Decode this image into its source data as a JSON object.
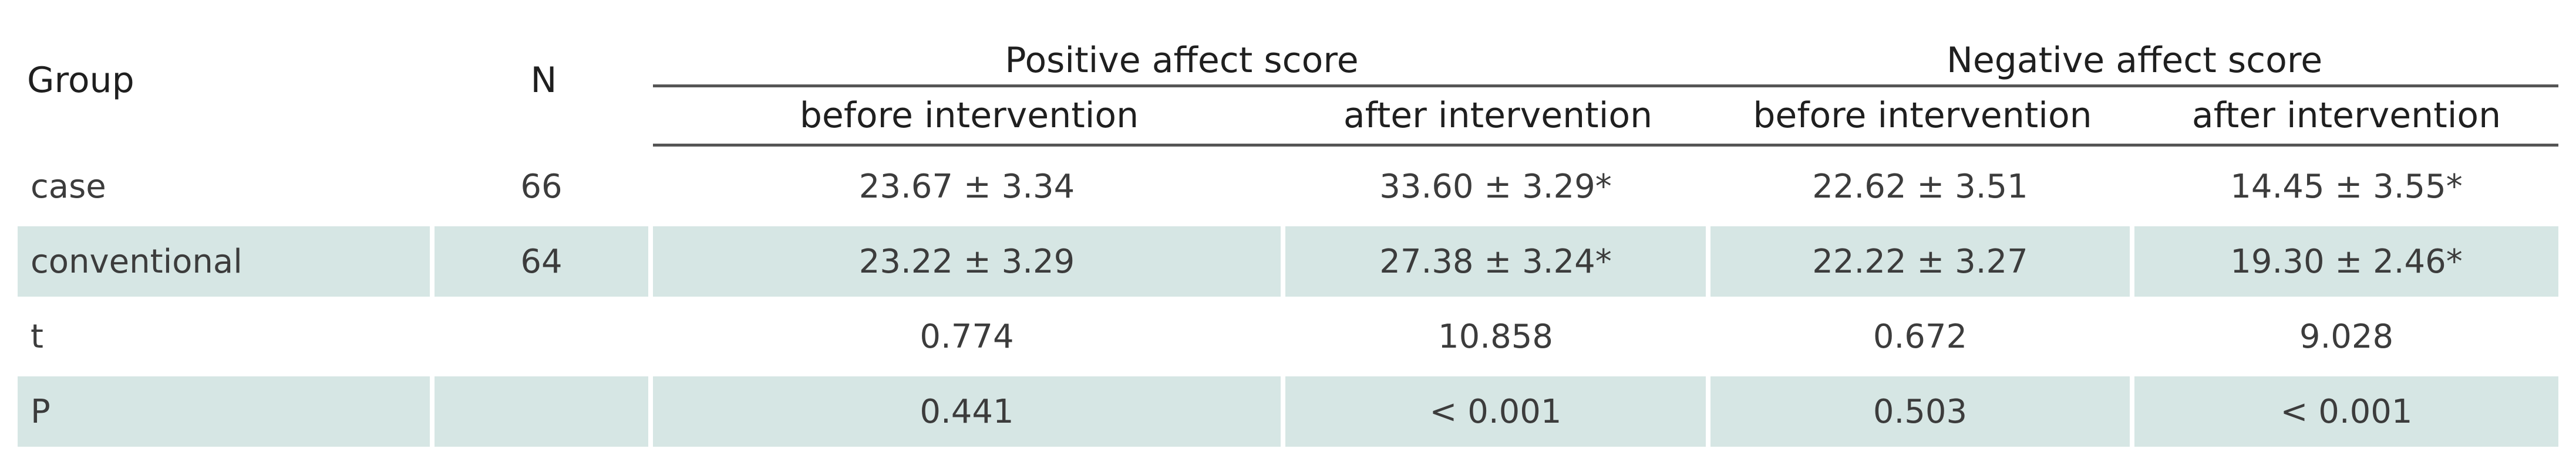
{
  "table": {
    "headers": {
      "group": "Group",
      "n": "N",
      "positive": "Positive affect score",
      "negative": "Negative affect score",
      "positive_before": "before intervention",
      "positive_after": "after intervention",
      "negative_before": "before intervention",
      "negative_after": "after intervention"
    },
    "rows": [
      {
        "shaded": false,
        "group": "case",
        "n": "66",
        "pos_before": "23.67 ± 3.34",
        "pos_after": "33.60 ± 3.29*",
        "neg_before": "22.62 ± 3.51",
        "neg_after": "14.45 ± 3.55*"
      },
      {
        "shaded": true,
        "group": "conventional",
        "n": "64",
        "pos_before": "23.22 ± 3.29",
        "pos_after": "27.38 ± 3.24*",
        "neg_before": "22.22 ± 3.27",
        "neg_after": "19.30 ± 2.46*"
      },
      {
        "shaded": false,
        "group": "t",
        "n": "",
        "pos_before": "0.774",
        "pos_after": "10.858",
        "neg_before": "0.672",
        "neg_after": "9.028"
      },
      {
        "shaded": true,
        "group": "P",
        "n": "",
        "pos_before": "0.441",
        "pos_after": "< 0.001",
        "neg_before": "0.503",
        "neg_after": "< 0.001"
      }
    ]
  }
}
